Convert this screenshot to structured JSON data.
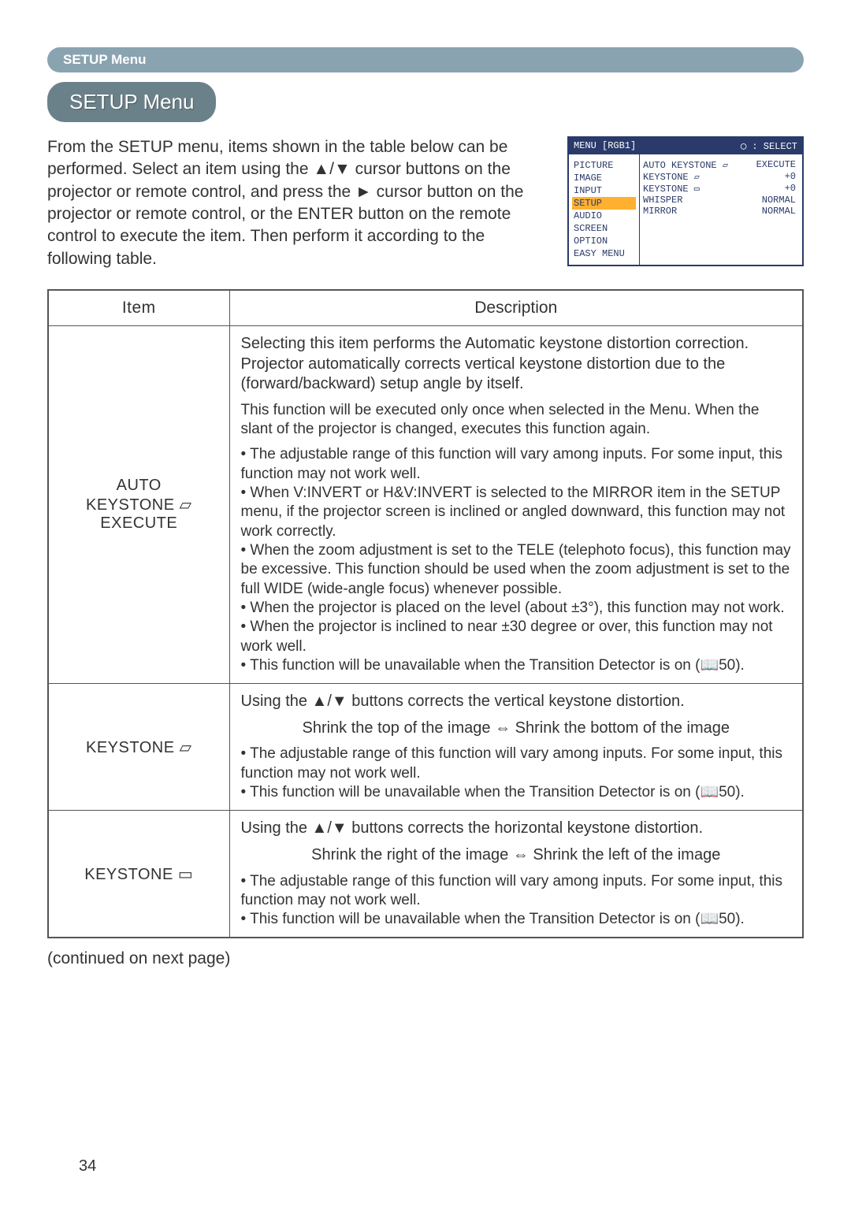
{
  "header_bar": "SETUP Menu",
  "title_chip": "SETUP Menu",
  "intro": "From the SETUP menu, items shown in the table below can be performed.\nSelect an item using the ▲/▼ cursor buttons on the projector or remote control, and press the ► cursor button on the projector or remote control, or the ENTER button on the remote control to execute the item. Then perform it according to the following table.",
  "osd": {
    "title_left": "MENU [RGB1]",
    "title_right": "◯ : SELECT",
    "left_items": [
      "PICTURE",
      "IMAGE",
      "INPUT",
      "SETUP",
      "AUDIO",
      "SCREEN",
      "OPTION",
      "EASY MENU"
    ],
    "selected_index": 3,
    "right_rows": [
      {
        "k": "AUTO KEYSTONE ▱",
        "v": "EXECUTE"
      },
      {
        "k": "KEYSTONE ▱",
        "v": "+0"
      },
      {
        "k": "KEYSTONE ▭",
        "v": "+0"
      },
      {
        "k": "WHISPER",
        "v": "NORMAL"
      },
      {
        "k": "MIRROR",
        "v": "NORMAL"
      }
    ]
  },
  "table": {
    "head_item": "Item",
    "head_desc": "Description",
    "rows": [
      {
        "item": "AUTO\nKEYSTONE ▱\nEXECUTE",
        "desc": [
          {
            "t": "Selecting this item performs the Automatic keystone distortion correction. Projector automatically corrects vertical keystone distortion due to the (forward/backward) setup angle by itself."
          },
          {
            "t": "This function will be executed only once when selected in the Menu. When the slant of the projector is changed, executes this function again.",
            "cls": "sub"
          },
          {
            "t": "• The adjustable range of this function will vary among inputs. For some input, this function may not work well.\n• When V:INVERT or H&V:INVERT is selected to the MIRROR item in the SETUP menu, if the projector screen is inclined or angled downward, this function may not work correctly.\n• When the zoom adjustment is set to the TELE (telephoto focus), this function may be excessive. This function should be used when the zoom adjustment is set to the full WIDE (wide-angle focus) whenever possible.\n• When the projector is placed on the level (about ±3°), this function may not work.\n• When the projector is inclined to near ±30 degree or over, this function may not work well.\n• This function will be unavailable when the Transition Detector is on (📖50).",
            "cls": "sub"
          }
        ]
      },
      {
        "item": "KEYSTONE ▱",
        "desc": [
          {
            "t": "Using the ▲/▼ buttons corrects the vertical keystone distortion."
          },
          {
            "t": "Shrink the top of the image ⇔ Shrink the bottom of the image",
            "cls": "center"
          },
          {
            "t": "• The adjustable range of this function will vary among inputs. For some input, this function may not work well.\n• This function will be unavailable when the Transition Detector is on (📖50).",
            "cls": "sub"
          }
        ]
      },
      {
        "item": "KEYSTONE ▭",
        "desc": [
          {
            "t": "Using the ▲/▼ buttons corrects the horizontal keystone distortion."
          },
          {
            "t": "Shrink the right of the image ⇔ Shrink the left of the image",
            "cls": "center"
          },
          {
            "t": "• The adjustable range of this function will vary among inputs. For some input, this function may not work well.\n• This function will be unavailable when the Transition Detector is on (📖50).",
            "cls": "sub"
          }
        ]
      }
    ]
  },
  "continued": "(continued on next page)",
  "page_number": "34",
  "colors": {
    "header_bg": "#8aa3b0",
    "chip_bg": "#6b818a",
    "osd_border": "#2a3a6a",
    "osd_highlight": "#ffb030",
    "table_border": "#555"
  }
}
